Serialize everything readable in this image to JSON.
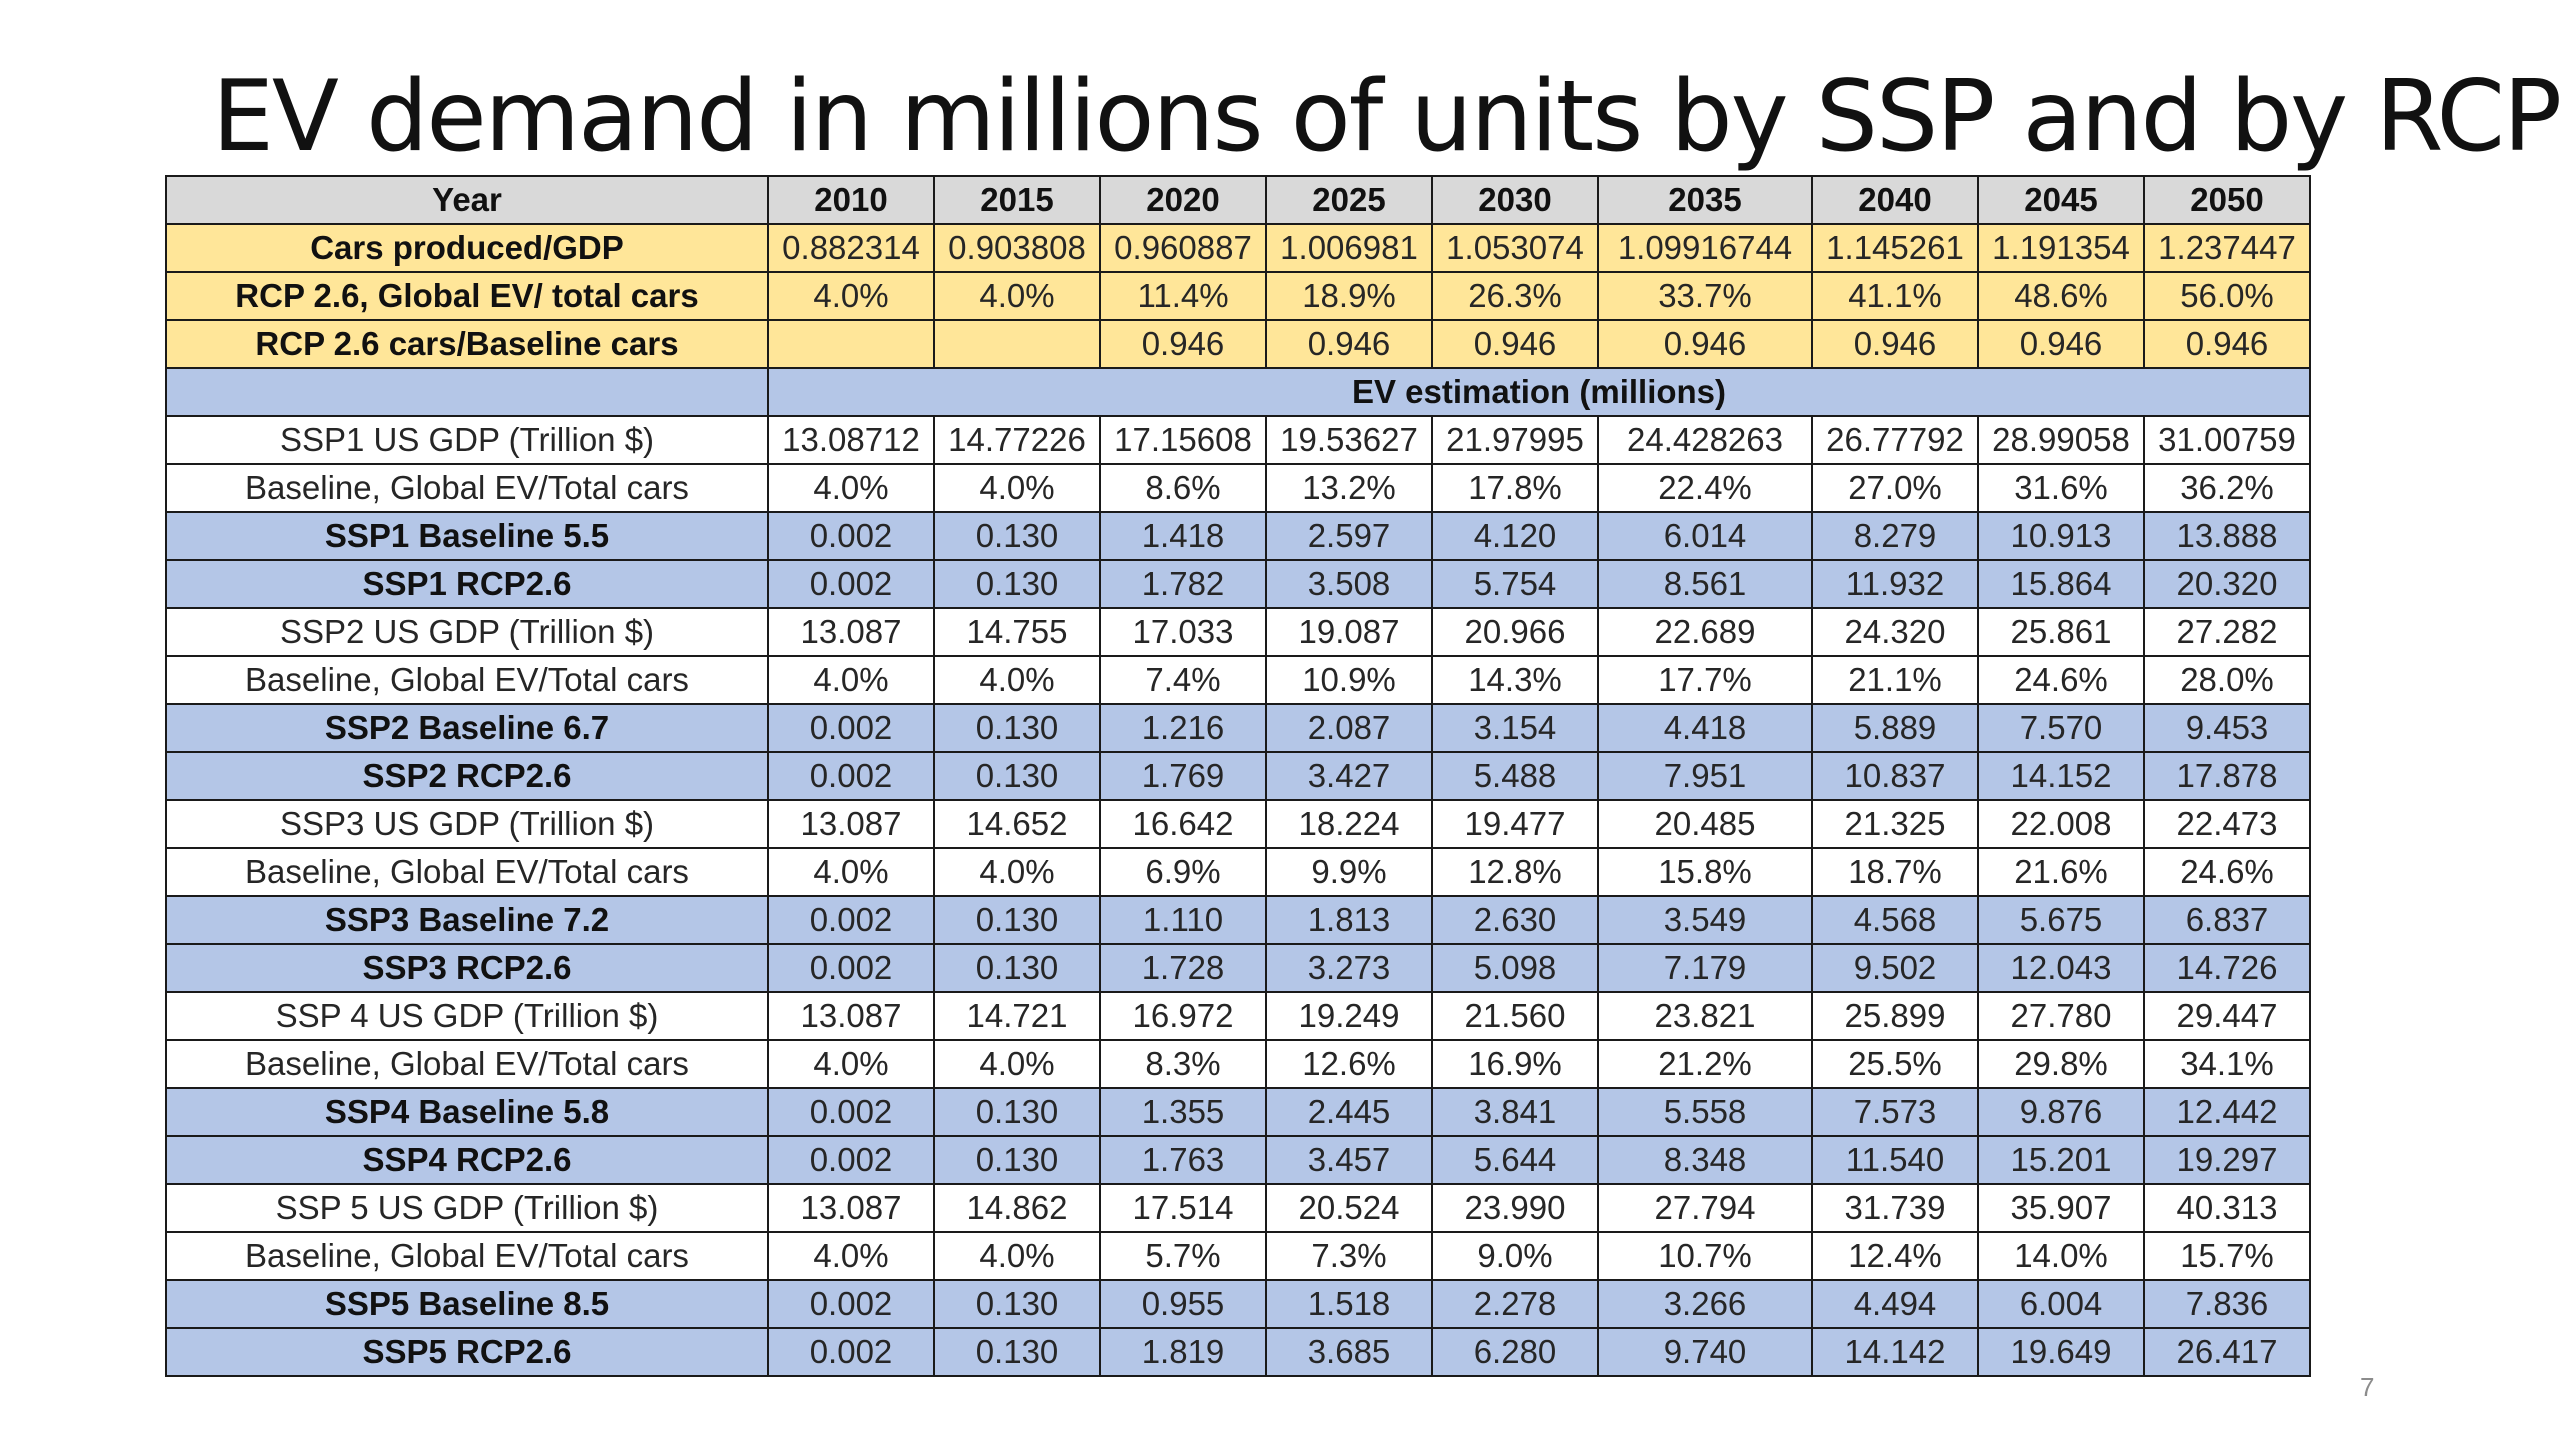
{
  "slide": {
    "title": "EV demand in millions of units by SSP and by RCP",
    "page_number": "7"
  },
  "table": {
    "header": {
      "label": "Year",
      "years": [
        "2010",
        "2015",
        "2020",
        "2025",
        "2030",
        "2035",
        "2040",
        "2045",
        "2050"
      ]
    },
    "assumptions": [
      {
        "label": "Cars produced/GDP",
        "values": [
          "0.882314",
          "0.903808",
          "0.960887",
          "1.006981",
          "1.053074",
          "1.09916744",
          "1.145261",
          "1.191354",
          "1.237447"
        ]
      },
      {
        "label": "RCP 2.6, Global EV/ total cars",
        "values": [
          "4.0%",
          "4.0%",
          "11.4%",
          "18.9%",
          "26.3%",
          "33.7%",
          "41.1%",
          "48.6%",
          "56.0%"
        ]
      },
      {
        "label": "RCP 2.6 cars/Baseline cars",
        "values": [
          "",
          "",
          "0.946",
          "0.946",
          "0.946",
          "0.946",
          "0.946",
          "0.946",
          "0.946"
        ]
      }
    ],
    "section_title": "EV estimation (millions)",
    "groups": [
      {
        "gdp": {
          "label": "SSP1 US GDP (Trillion $)",
          "values": [
            "13.08712",
            "14.77226",
            "17.15608",
            "19.53627",
            "21.97995",
            "24.428263",
            "26.77792",
            "28.99058",
            "31.00759"
          ]
        },
        "share": {
          "label": "Baseline, Global EV/Total cars",
          "values": [
            "4.0%",
            "4.0%",
            "8.6%",
            "13.2%",
            "17.8%",
            "22.4%",
            "27.0%",
            "31.6%",
            "36.2%"
          ]
        },
        "baseline": {
          "label": "SSP1 Baseline 5.5",
          "values": [
            "0.002",
            "0.130",
            "1.418",
            "2.597",
            "4.120",
            "6.014",
            "8.279",
            "10.913",
            "13.888"
          ]
        },
        "rcp": {
          "label": "SSP1 RCP2.6",
          "values": [
            "0.002",
            "0.130",
            "1.782",
            "3.508",
            "5.754",
            "8.561",
            "11.932",
            "15.864",
            "20.320"
          ]
        }
      },
      {
        "gdp": {
          "label": "SSP2 US GDP (Trillion $)",
          "values": [
            "13.087",
            "14.755",
            "17.033",
            "19.087",
            "20.966",
            "22.689",
            "24.320",
            "25.861",
            "27.282"
          ]
        },
        "share": {
          "label": "Baseline, Global EV/Total cars",
          "values": [
            "4.0%",
            "4.0%",
            "7.4%",
            "10.9%",
            "14.3%",
            "17.7%",
            "21.1%",
            "24.6%",
            "28.0%"
          ]
        },
        "baseline": {
          "label": "SSP2 Baseline 6.7",
          "values": [
            "0.002",
            "0.130",
            "1.216",
            "2.087",
            "3.154",
            "4.418",
            "5.889",
            "7.570",
            "9.453"
          ]
        },
        "rcp": {
          "label": "SSP2 RCP2.6",
          "values": [
            "0.002",
            "0.130",
            "1.769",
            "3.427",
            "5.488",
            "7.951",
            "10.837",
            "14.152",
            "17.878"
          ]
        }
      },
      {
        "gdp": {
          "label": "SSP3 US GDP (Trillion $)",
          "values": [
            "13.087",
            "14.652",
            "16.642",
            "18.224",
            "19.477",
            "20.485",
            "21.325",
            "22.008",
            "22.473"
          ]
        },
        "share": {
          "label": "Baseline, Global EV/Total cars",
          "values": [
            "4.0%",
            "4.0%",
            "6.9%",
            "9.9%",
            "12.8%",
            "15.8%",
            "18.7%",
            "21.6%",
            "24.6%"
          ]
        },
        "baseline": {
          "label": "SSP3 Baseline 7.2",
          "values": [
            "0.002",
            "0.130",
            "1.110",
            "1.813",
            "2.630",
            "3.549",
            "4.568",
            "5.675",
            "6.837"
          ]
        },
        "rcp": {
          "label": "SSP3 RCP2.6",
          "values": [
            "0.002",
            "0.130",
            "1.728",
            "3.273",
            "5.098",
            "7.179",
            "9.502",
            "12.043",
            "14.726"
          ]
        }
      },
      {
        "gdp": {
          "label": "SSP 4 US GDP (Trillion $)",
          "values": [
            "13.087",
            "14.721",
            "16.972",
            "19.249",
            "21.560",
            "23.821",
            "25.899",
            "27.780",
            "29.447"
          ]
        },
        "share": {
          "label": "Baseline, Global EV/Total cars",
          "values": [
            "4.0%",
            "4.0%",
            "8.3%",
            "12.6%",
            "16.9%",
            "21.2%",
            "25.5%",
            "29.8%",
            "34.1%"
          ]
        },
        "baseline": {
          "label": "SSP4 Baseline 5.8",
          "values": [
            "0.002",
            "0.130",
            "1.355",
            "2.445",
            "3.841",
            "5.558",
            "7.573",
            "9.876",
            "12.442"
          ]
        },
        "rcp": {
          "label": "SSP4 RCP2.6",
          "values": [
            "0.002",
            "0.130",
            "1.763",
            "3.457",
            "5.644",
            "8.348",
            "11.540",
            "15.201",
            "19.297"
          ]
        }
      },
      {
        "gdp": {
          "label": "SSP 5 US GDP (Trillion $)",
          "values": [
            "13.087",
            "14.862",
            "17.514",
            "20.524",
            "23.990",
            "27.794",
            "31.739",
            "35.907",
            "40.313"
          ]
        },
        "share": {
          "label": "Baseline, Global EV/Total cars",
          "values": [
            "4.0%",
            "4.0%",
            "5.7%",
            "7.3%",
            "9.0%",
            "10.7%",
            "12.4%",
            "14.0%",
            "15.7%"
          ]
        },
        "baseline": {
          "label": "SSP5 Baseline 8.5",
          "values": [
            "0.002",
            "0.130",
            "0.955",
            "1.518",
            "2.278",
            "3.266",
            "4.494",
            "6.004",
            "7.836"
          ]
        },
        "rcp": {
          "label": "SSP5 RCP2.6",
          "values": [
            "0.002",
            "0.130",
            "1.819",
            "3.685",
            "6.280",
            "9.740",
            "14.142",
            "19.649",
            "26.417"
          ]
        }
      }
    ]
  },
  "colors": {
    "header_fill": "#d9d9d9",
    "assumption_fill": "#ffe699",
    "scenario_fill": "#b4c6e7",
    "border": "#1a1a1a"
  }
}
